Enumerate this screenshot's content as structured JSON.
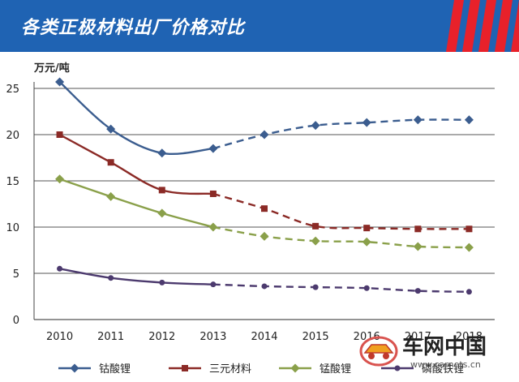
{
  "header": {
    "title": "各类正极材料出厂价格对比"
  },
  "watermark": {
    "brand": "车网中国",
    "url": "www.carnets.cn"
  },
  "colors": {
    "header": "#1f63b3",
    "accent_red": "#e8212a",
    "grid": "#555555"
  },
  "chart_data": {
    "type": "line",
    "ylabel": "万元/吨",
    "ylim": [
      0,
      25
    ],
    "yticks": [
      0,
      5,
      10,
      15,
      20,
      25
    ],
    "categories": [
      "2010",
      "2011",
      "2012",
      "2013",
      "2014",
      "2015",
      "2016",
      "2017",
      "2018"
    ],
    "actual_through": "2013",
    "grid": "horizontal",
    "legend_position": "bottom",
    "series": [
      {
        "name": "钴酸锂",
        "color": "#3b5d8f",
        "marker": "diamond",
        "values": [
          25.7,
          20.6,
          18.0,
          18.5,
          20.0,
          21.0,
          21.3,
          21.6,
          21.6
        ]
      },
      {
        "name": "三元材料",
        "color": "#8b2a26",
        "marker": "square",
        "values": [
          20.0,
          17.0,
          14.0,
          13.6,
          12.0,
          10.1,
          9.9,
          9.8,
          9.8
        ]
      },
      {
        "name": "锰酸锂",
        "color": "#8aa04a",
        "marker": "diamond",
        "values": [
          15.2,
          13.3,
          11.5,
          10.0,
          9.0,
          8.5,
          8.4,
          7.9,
          7.8
        ]
      },
      {
        "name": "磷酸铁锂",
        "color": "#4c3a6e",
        "marker": "circle",
        "values": [
          5.5,
          4.5,
          4.0,
          3.8,
          3.6,
          3.5,
          3.4,
          3.1,
          3.0
        ]
      }
    ]
  }
}
